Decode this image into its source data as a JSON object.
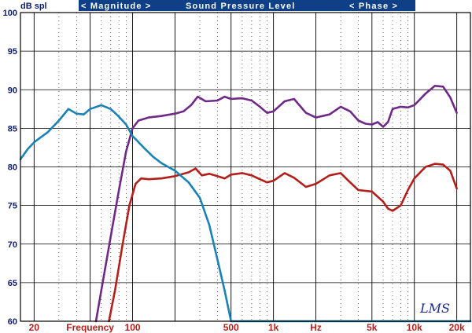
{
  "header": {
    "left": "< Magnitude >",
    "center": "Sound Pressure Level",
    "right": "< Phase >"
  },
  "logo_text": "LMS",
  "chart_data": {
    "type": "line",
    "ylabel": "dB spl",
    "ylim": [
      60,
      100
    ],
    "xlim": [
      16,
      25000
    ],
    "x_scale": "log",
    "grid": true,
    "y_ticks": [
      "100",
      "95",
      "90",
      "85",
      "80",
      "75",
      "70",
      "65",
      "60"
    ],
    "x_ticks": [
      "20",
      "Frequency",
      "100",
      "500",
      "1k",
      "Hz",
      "5k",
      "10k",
      "20k"
    ],
    "series": [
      {
        "color": "#6e2a86",
        "points": [
          [
            55,
            60
          ],
          [
            60,
            64
          ],
          [
            70,
            71
          ],
          [
            80,
            77
          ],
          [
            90,
            82
          ],
          [
            100,
            85
          ],
          [
            110,
            86
          ],
          [
            130,
            86.4
          ],
          [
            160,
            86.6
          ],
          [
            200,
            86.9
          ],
          [
            230,
            87.2
          ],
          [
            260,
            88
          ],
          [
            290,
            89.1
          ],
          [
            330,
            88.5
          ],
          [
            400,
            88.6
          ],
          [
            450,
            89.1
          ],
          [
            500,
            88.8
          ],
          [
            600,
            88.9
          ],
          [
            700,
            88.6
          ],
          [
            800,
            87.8
          ],
          [
            900,
            87.0
          ],
          [
            1000,
            87.2
          ],
          [
            1200,
            88.5
          ],
          [
            1400,
            88.8
          ],
          [
            1700,
            87
          ],
          [
            2000,
            86.4
          ],
          [
            2500,
            86.8
          ],
          [
            3000,
            87.8
          ],
          [
            3500,
            87.2
          ],
          [
            4000,
            86
          ],
          [
            4500,
            85.6
          ],
          [
            5000,
            85.5
          ],
          [
            5500,
            85.8
          ],
          [
            6000,
            85.2
          ],
          [
            6500,
            85.8
          ],
          [
            7000,
            87.5
          ],
          [
            8000,
            87.8
          ],
          [
            9000,
            87.7
          ],
          [
            10000,
            88
          ],
          [
            12000,
            89.5
          ],
          [
            14000,
            90.5
          ],
          [
            16000,
            90.4
          ],
          [
            18000,
            89
          ],
          [
            20000,
            87
          ]
        ]
      },
      {
        "color": "#b3201c",
        "points": [
          [
            68,
            60
          ],
          [
            75,
            64
          ],
          [
            85,
            70
          ],
          [
            95,
            75
          ],
          [
            105,
            77.8
          ],
          [
            115,
            78.5
          ],
          [
            130,
            78.4
          ],
          [
            160,
            78.5
          ],
          [
            200,
            78.8
          ],
          [
            250,
            79.3
          ],
          [
            280,
            79.8
          ],
          [
            310,
            78.9
          ],
          [
            350,
            79.1
          ],
          [
            400,
            78.8
          ],
          [
            450,
            78.5
          ],
          [
            500,
            79
          ],
          [
            600,
            79.2
          ],
          [
            700,
            78.9
          ],
          [
            800,
            78.4
          ],
          [
            900,
            78
          ],
          [
            1000,
            78.2
          ],
          [
            1200,
            79.2
          ],
          [
            1400,
            78.6
          ],
          [
            1700,
            77.4
          ],
          [
            2000,
            77.8
          ],
          [
            2500,
            78.9
          ],
          [
            3000,
            79.2
          ],
          [
            3500,
            78
          ],
          [
            4000,
            77
          ],
          [
            5000,
            76.8
          ],
          [
            6000,
            75.5
          ],
          [
            6500,
            74.6
          ],
          [
            7000,
            74.3
          ],
          [
            8000,
            75
          ],
          [
            9000,
            77
          ],
          [
            10000,
            78.5
          ],
          [
            12000,
            80
          ],
          [
            14000,
            80.4
          ],
          [
            16000,
            80.3
          ],
          [
            18000,
            79.5
          ],
          [
            20000,
            77.2
          ]
        ]
      },
      {
        "color": "#1a82b5",
        "points": [
          [
            16,
            81
          ],
          [
            18,
            82.3
          ],
          [
            20,
            83.2
          ],
          [
            25,
            84.5
          ],
          [
            30,
            86
          ],
          [
            35,
            87.5
          ],
          [
            40,
            86.9
          ],
          [
            45,
            86.8
          ],
          [
            50,
            87.5
          ],
          [
            60,
            88
          ],
          [
            70,
            87.5
          ],
          [
            80,
            86.5
          ],
          [
            90,
            85.5
          ],
          [
            100,
            84
          ],
          [
            120,
            82.5
          ],
          [
            140,
            81.3
          ],
          [
            160,
            80.5
          ],
          [
            200,
            79.5
          ],
          [
            250,
            78
          ],
          [
            300,
            76
          ],
          [
            350,
            72.5
          ],
          [
            400,
            68
          ],
          [
            450,
            64
          ],
          [
            500,
            60
          ],
          [
            600,
            60
          ],
          [
            1000,
            60
          ],
          [
            2000,
            60
          ],
          [
            5000,
            60
          ],
          [
            10000,
            60
          ],
          [
            20000,
            60
          ],
          [
            25000,
            60
          ]
        ]
      }
    ]
  }
}
